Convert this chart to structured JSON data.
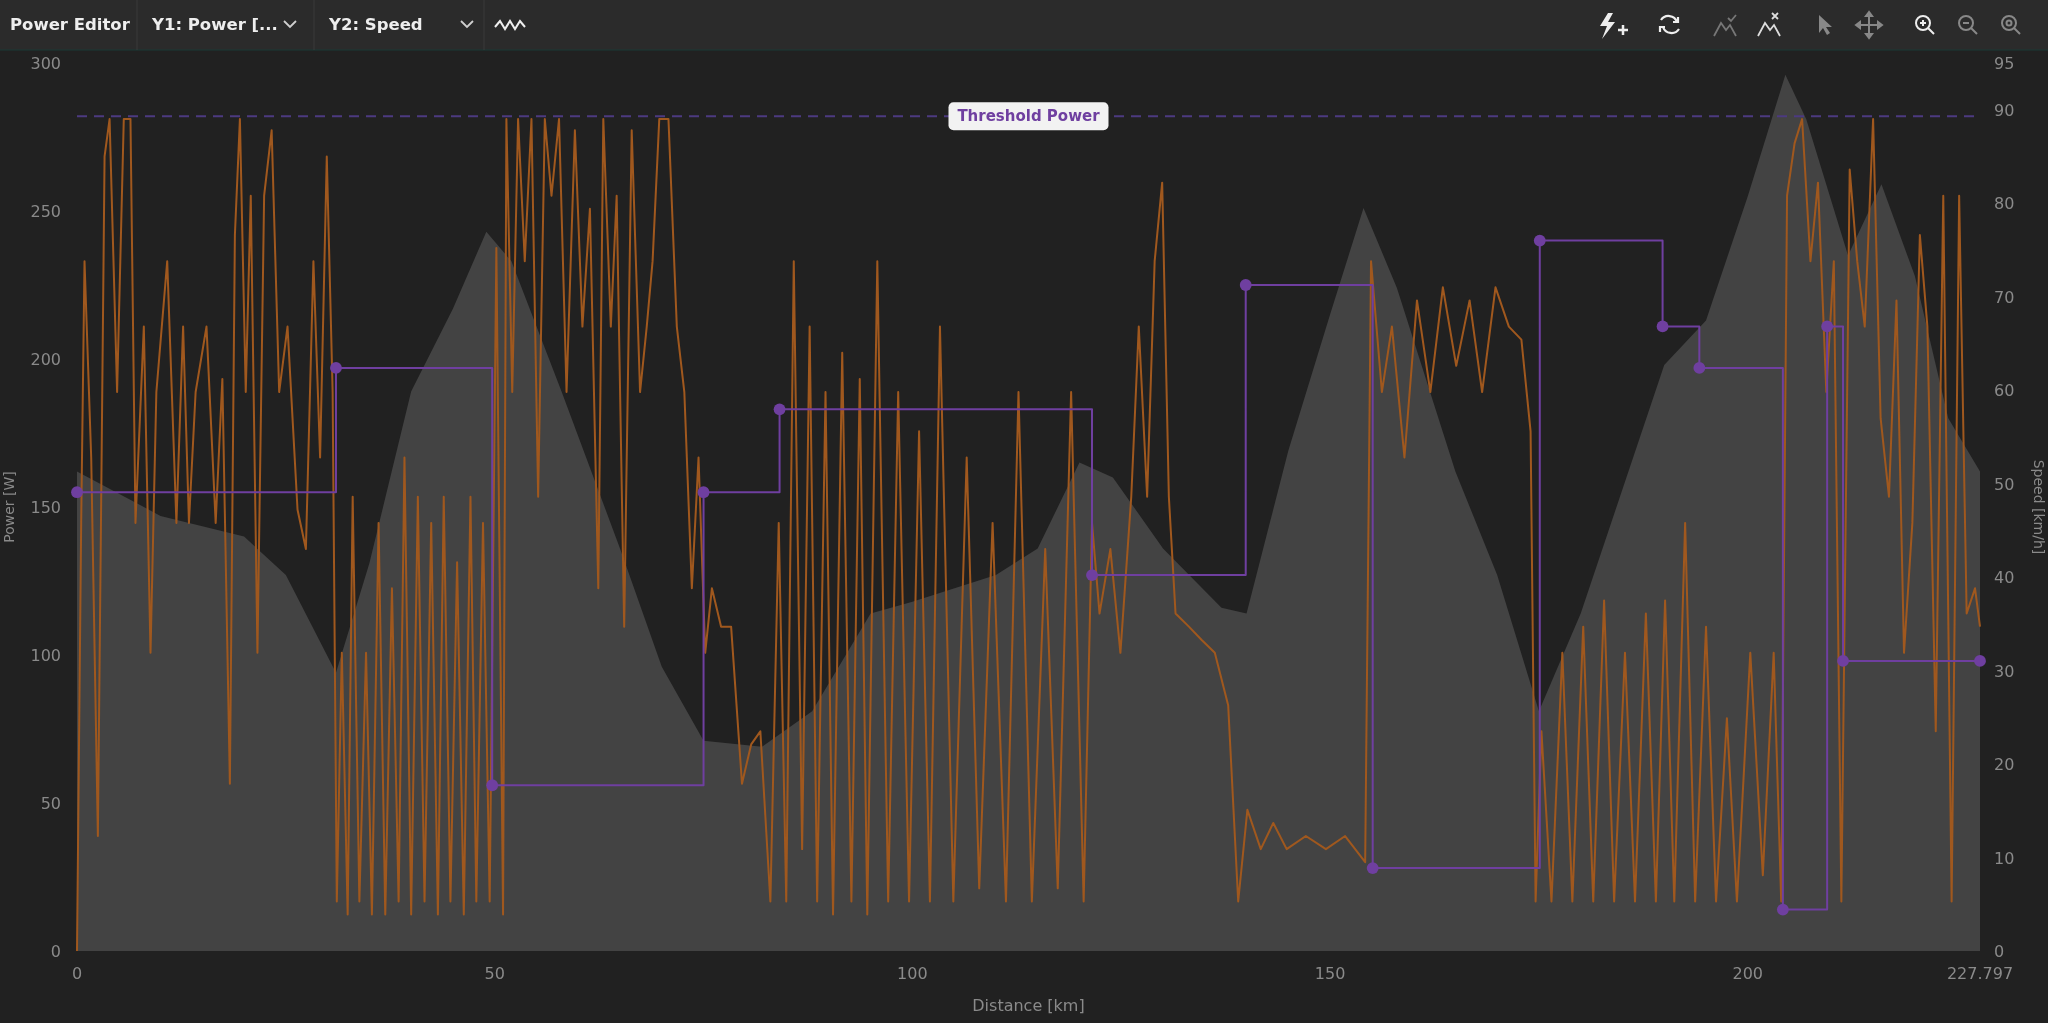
{
  "chart_data": {
    "type": "line",
    "title": "Power Editor",
    "annotations": [
      "Y1: Power [...",
      "Y2: Speed"
    ],
    "xlabel": "Distance [km]",
    "ylabel": "Power [W]",
    "y2label": "Speed [km/h]",
    "xlim": [
      0,
      227.797
    ],
    "xticks": [
      0,
      50,
      100,
      150,
      200,
      227.797
    ],
    "ylim": [
      0,
      300
    ],
    "yticks": [
      0,
      50,
      100,
      150,
      200,
      250,
      300
    ],
    "y2lim": [
      0,
      95
    ],
    "y2ticks": [
      0,
      10,
      20,
      30,
      40,
      50,
      60,
      70,
      80,
      90,
      95
    ],
    "grid": false,
    "ref_lines": [
      {
        "axis": "y",
        "value": 282,
        "label": "Threshold Power",
        "color": "#4c3a80",
        "line_style": "dashed"
      }
    ],
    "series": [
      {
        "type": "area",
        "color": "#434343",
        "x": [
          0,
          10,
          20,
          25,
          31,
          35,
          40,
          45,
          49,
          52,
          58,
          65,
          70,
          75,
          82,
          88,
          95,
          100,
          110,
          115,
          120,
          124,
          130,
          137,
          140,
          145,
          150,
          154,
          158,
          165,
          170,
          175,
          180,
          190,
          195,
          200,
          204.5,
          207,
          212,
          216,
          220,
          224,
          227.797
        ],
        "values": [
          162,
          147,
          140,
          127,
          94,
          131,
          189,
          217,
          243,
          233,
          189,
          136,
          96,
          71,
          69,
          81,
          114,
          118,
          127,
          136,
          165,
          160,
          136,
          116,
          114,
          169,
          215,
          251,
          224,
          162,
          127,
          81,
          114,
          198,
          213,
          255,
          296,
          281,
          235,
          259,
          228,
          180,
          162
        ]
      },
      {
        "axis": "y2",
        "color": "#a0581e",
        "x": [
          0,
          0.5,
          0.9,
          1.7,
          2.5,
          3.3,
          3.9,
          4.8,
          5.6,
          6.4,
          7.0,
          8.0,
          8.8,
          9.5,
          10.8,
          11.9,
          12.7,
          13.4,
          14.2,
          15.5,
          16.6,
          17.4,
          18.3,
          18.9,
          19.5,
          20.2,
          20.8,
          21.6,
          22.4,
          23.3,
          24.2,
          25.2,
          26.4,
          27.4,
          28.3,
          29.1,
          29.9,
          30.6,
          31.1,
          31.7,
          32.4,
          33.0,
          33.8,
          34.6,
          35.3,
          36.1,
          36.9,
          37.7,
          38.5,
          39.2,
          40.0,
          40.8,
          41.6,
          42.4,
          43.2,
          43.9,
          44.7,
          45.5,
          46.3,
          47.1,
          47.8,
          48.6,
          49.4,
          50.2,
          51.0,
          51.4,
          52.1,
          52.8,
          53.6,
          54.4,
          55.2,
          56.0,
          56.8,
          57.7,
          58.6,
          59.6,
          60.5,
          61.4,
          62.4,
          63.0,
          63.9,
          64.6,
          65.5,
          66.4,
          67.4,
          68.2,
          68.9,
          69.7,
          70.8,
          71.8,
          72.7,
          73.6,
          74.4,
          75.2,
          76.0,
          77.1,
          78.3,
          79.6,
          80.7,
          81.8,
          83.0,
          84.0,
          84.9,
          85.8,
          86.8,
          87.7,
          88.6,
          89.6,
          90.5,
          91.6,
          92.7,
          93.7,
          94.6,
          95.8,
          97.1,
          98.3,
          99.6,
          100.8,
          102.1,
          103.3,
          104.9,
          106.5,
          108.0,
          109.6,
          111.2,
          112.7,
          114.3,
          115.9,
          117.4,
          119.0,
          120.5,
          121.5,
          122.4,
          123.7,
          124.9,
          126.2,
          127.1,
          128.1,
          129.0,
          129.9,
          130.7,
          131.5,
          133.1,
          134.6,
          136.2,
          137.8,
          139.0,
          140.1,
          141.7,
          143.2,
          144.8,
          147.1,
          149.5,
          151.8,
          154.2,
          154.9,
          156.2,
          157.4,
          158.9,
          160.4,
          162.0,
          163.5,
          165.1,
          166.7,
          168.2,
          169.8,
          171.4,
          172.9,
          174.0,
          174.6,
          175.3,
          176.5,
          177.8,
          179.0,
          180.3,
          181.5,
          182.8,
          184.0,
          185.3,
          186.5,
          187.8,
          189.0,
          190.1,
          191.2,
          192.5,
          193.7,
          195.0,
          196.2,
          197.5,
          198.7,
          200.3,
          201.8,
          203.1,
          204.0,
          204.7,
          205.6,
          206.5,
          207.5,
          208.4,
          209.4,
          210.3,
          211.2,
          212.2,
          213.1,
          214.0,
          215.0,
          215.9,
          216.9,
          217.8,
          218.7,
          219.7,
          220.6,
          221.5,
          222.5,
          223.4,
          224.4,
          225.3,
          226.2,
          227.2,
          227.797
        ],
        "values": [
          0,
          45.8,
          73.8,
          52.8,
          12.3,
          85.0,
          89,
          59.8,
          89,
          89,
          45.8,
          66.8,
          31.9,
          59.8,
          73.8,
          45.8,
          66.8,
          45.8,
          59.8,
          66.8,
          45.8,
          61.2,
          17.9,
          76.6,
          89,
          59.8,
          80.8,
          31.9,
          80.8,
          87.8,
          59.8,
          66.8,
          47.2,
          43.0,
          73.8,
          52.8,
          85.0,
          59.8,
          5.3,
          31.9,
          3.9,
          48.6,
          5.3,
          31.9,
          3.9,
          45.8,
          3.9,
          38.8,
          5.3,
          52.8,
          3.9,
          48.6,
          5.3,
          45.8,
          3.9,
          48.6,
          5.3,
          41.6,
          3.9,
          48.6,
          5.3,
          45.8,
          5.3,
          75.2,
          3.9,
          89,
          59.8,
          89,
          73.8,
          89,
          48.6,
          89,
          80.8,
          89,
          59.8,
          87.8,
          66.8,
          79.4,
          38.8,
          89,
          66.8,
          80.8,
          34.7,
          87.8,
          59.8,
          66.8,
          73.8,
          89,
          89,
          66.8,
          59.8,
          38.8,
          52.8,
          31.9,
          38.8,
          34.7,
          34.7,
          17.9,
          22.1,
          23.5,
          5.3,
          45.8,
          5.3,
          73.8,
          10.9,
          66.8,
          5.3,
          59.8,
          3.9,
          64.0,
          5.3,
          61.2,
          3.9,
          73.8,
          5.3,
          59.8,
          5.3,
          55.6,
          5.3,
          66.8,
          5.3,
          52.8,
          6.7,
          45.8,
          5.3,
          59.8,
          5.3,
          43.0,
          6.7,
          59.8,
          5.3,
          45.8,
          36.1,
          43.0,
          31.9,
          48.6,
          66.8,
          48.6,
          73.8,
          82.2,
          48.6,
          36.1,
          34.7,
          33.3,
          31.9,
          26.3,
          5.3,
          15.1,
          10.9,
          13.7,
          10.9,
          12.3,
          10.9,
          12.3,
          9.5,
          73.8,
          59.8,
          66.8,
          52.8,
          69.6,
          59.8,
          71.0,
          62.6,
          69.6,
          59.8,
          71.0,
          66.8,
          65.4,
          55.6,
          5.3,
          23.5,
          5.3,
          31.9,
          5.3,
          34.7,
          5.3,
          37.5,
          5.3,
          31.9,
          5.3,
          36.1,
          5.3,
          37.5,
          5.3,
          45.8,
          5.3,
          34.7,
          5.3,
          24.9,
          5.3,
          31.9,
          8.1,
          31.9,
          5.3,
          80.8,
          86.4,
          89,
          73.8,
          82.2,
          59.8,
          73.8,
          5.3,
          83.6,
          73.8,
          66.8,
          89,
          57.0,
          48.6,
          69.6,
          31.9,
          45.8,
          76.6,
          66.8,
          23.5,
          80.8,
          5.3,
          80.8,
          36.1,
          38.8,
          34.7
        ]
      },
      {
        "type": "step",
        "color": "#6f3fa0",
        "marker": "circle",
        "x": [
          0,
          31.0,
          49.7,
          75.0,
          84.1,
          121.5,
          139.9,
          155.1,
          175.1,
          189.8,
          194.2,
          204.2,
          209.5,
          211.4,
          227.797
        ],
        "values": [
          155,
          197,
          56,
          155,
          183,
          127,
          225,
          28,
          240,
          211,
          197,
          14,
          211,
          98,
          98
        ]
      }
    ]
  }
}
